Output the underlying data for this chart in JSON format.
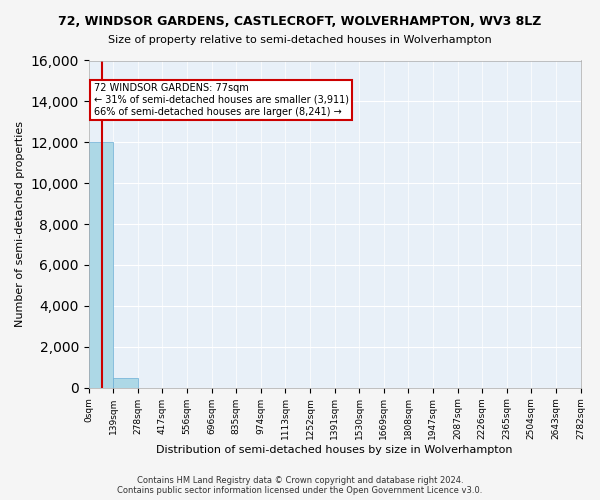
{
  "title1": "72, WINDSOR GARDENS, CASTLECROFT, WOLVERHAMPTON, WV3 8LZ",
  "title2": "Size of property relative to semi-detached houses in Wolverhampton",
  "xlabel": "Distribution of semi-detached houses by size in Wolverhampton",
  "ylabel": "Number of semi-detached properties",
  "footer1": "Contains HM Land Registry data © Crown copyright and database right 2024.",
  "footer2": "Contains public sector information licensed under the Open Government Licence v3.0.",
  "annotation_title": "72 WINDSOR GARDENS: 77sqm",
  "annotation_line1": "← 31% of semi-detached houses are smaller (3,911)",
  "annotation_line2": "66% of semi-detached houses are larger (8,241) →",
  "property_size": 77,
  "bar_color": "#add8e6",
  "bar_edge_color": "#6baed6",
  "red_line_color": "#cc0000",
  "annotation_box_color": "#cc0000",
  "background_color": "#e8f0f8",
  "grid_color": "#ffffff",
  "bin_edges": [
    0,
    139,
    278,
    417,
    556,
    696,
    835,
    974,
    1113,
    1252,
    1391,
    1530,
    1669,
    1808,
    1947,
    2087,
    2226,
    2365,
    2504,
    2643,
    2782
  ],
  "bin_labels": [
    "0sqm",
    "139sqm",
    "278sqm",
    "417sqm",
    "556sqm",
    "696sqm",
    "835sqm",
    "974sqm",
    "1113sqm",
    "1252sqm",
    "1391sqm",
    "1530sqm",
    "1669sqm",
    "1808sqm",
    "1947sqm",
    "2087sqm",
    "2226sqm",
    "2365sqm",
    "2504sqm",
    "2643sqm",
    "2782sqm"
  ],
  "bar_heights": [
    12000,
    450,
    0,
    0,
    0,
    0,
    0,
    0,
    0,
    0,
    0,
    0,
    0,
    0,
    0,
    0,
    0,
    0,
    0,
    0
  ],
  "ylim": [
    0,
    16000
  ],
  "yticks": [
    0,
    2000,
    4000,
    6000,
    8000,
    10000,
    12000,
    14000,
    16000
  ]
}
